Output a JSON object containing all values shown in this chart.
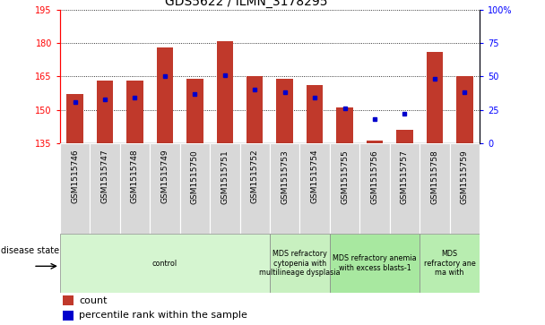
{
  "title": "GDS5622 / ILMN_3178295",
  "samples": [
    "GSM1515746",
    "GSM1515747",
    "GSM1515748",
    "GSM1515749",
    "GSM1515750",
    "GSM1515751",
    "GSM1515752",
    "GSM1515753",
    "GSM1515754",
    "GSM1515755",
    "GSM1515756",
    "GSM1515757",
    "GSM1515758",
    "GSM1515759"
  ],
  "bar_values": [
    157,
    163,
    163,
    178,
    164,
    181,
    165,
    164,
    161,
    151,
    136,
    141,
    176,
    165
  ],
  "bar_base": 135,
  "blue_dot_values": [
    31,
    33,
    34,
    50,
    37,
    51,
    40,
    38,
    34,
    26,
    18,
    22,
    48,
    38
  ],
  "ylim_left": [
    135,
    195
  ],
  "ylim_right": [
    0,
    100
  ],
  "yticks_left": [
    135,
    150,
    165,
    180,
    195
  ],
  "yticks_right": [
    0,
    25,
    50,
    75,
    100
  ],
  "bar_color": "#C0392B",
  "dot_color": "#0000CC",
  "disease_groups": [
    {
      "label": "control",
      "start": 0,
      "end": 7,
      "color": "#D5F5D0"
    },
    {
      "label": "MDS refractory\ncytopenia with\nmultilineage dysplasia",
      "start": 7,
      "end": 9,
      "color": "#C8F0C0"
    },
    {
      "label": "MDS refractory anemia\nwith excess blasts-1",
      "start": 9,
      "end": 12,
      "color": "#A8E8A0"
    },
    {
      "label": "MDS\nrefractory ane\nma with",
      "start": 12,
      "end": 14,
      "color": "#B8EDB0"
    }
  ],
  "legend_count_label": "count",
  "legend_pct_label": "percentile rank within the sample",
  "disease_state_label": "disease state",
  "tick_bg_color": "#D8D8D8",
  "xlim": [
    -0.5,
    13.5
  ]
}
